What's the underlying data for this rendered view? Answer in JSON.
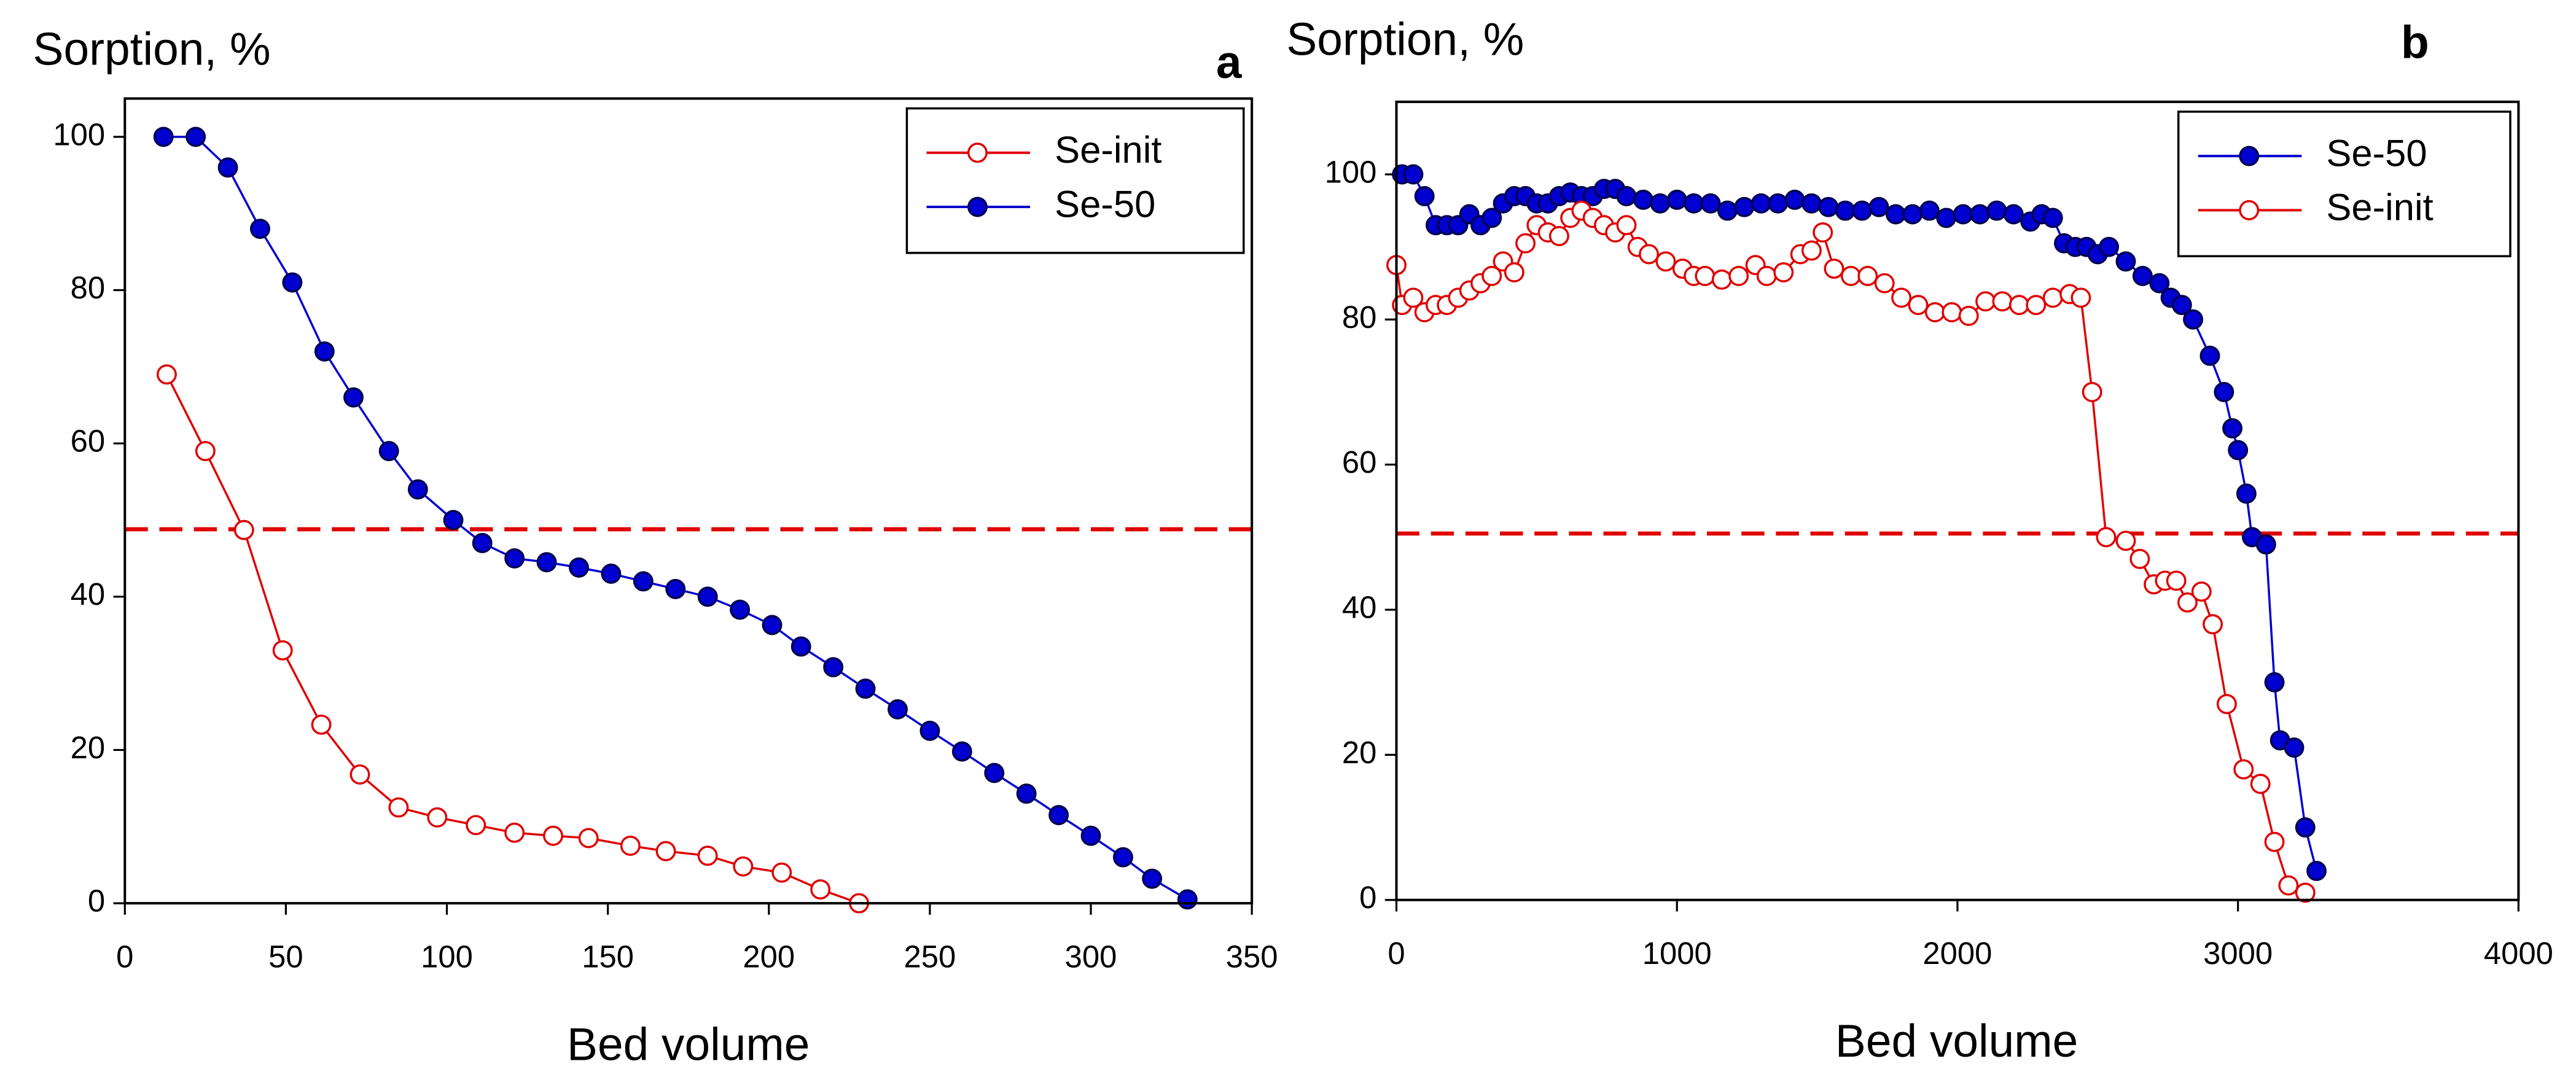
{
  "chart_data": [
    {
      "type": "line",
      "panel_label": "a",
      "y_label": "Sorption, %",
      "x_label": "Bed volume",
      "xlim": [
        0,
        350
      ],
      "ylim": [
        0,
        105
      ],
      "xticks": [
        0,
        50,
        100,
        150,
        200,
        250,
        300,
        350
      ],
      "yticks": [
        0,
        20,
        40,
        60,
        80,
        100
      ],
      "legend": "upper right",
      "hline": 48.8,
      "hline_color": "#e00000",
      "series": [
        {
          "name": "Se-init",
          "color": "#e00000",
          "marker": "open",
          "x": [
            13,
            25,
            37,
            49,
            61,
            73,
            85,
            97,
            109,
            121,
            133,
            144,
            157,
            168,
            181,
            192,
            204,
            216,
            228
          ],
          "values": [
            69,
            59,
            48.7,
            33,
            23.3,
            16.8,
            12.5,
            11.2,
            10.2,
            9.2,
            8.8,
            8.5,
            7.5,
            6.8,
            6.2,
            4.8,
            4,
            1.8,
            0
          ]
        },
        {
          "name": "Se-50",
          "color": "#0000d0",
          "marker": "filled",
          "x": [
            12,
            22,
            32,
            42,
            52,
            62,
            71,
            82,
            91,
            102,
            111,
            121,
            131,
            141,
            151,
            161,
            171,
            181,
            191,
            201,
            210,
            220,
            230,
            240,
            250,
            260,
            270,
            280,
            290,
            300,
            310,
            319,
            330
          ],
          "values": [
            100,
            100,
            96,
            88,
            81,
            72,
            66,
            59,
            54,
            50,
            47,
            45,
            44.5,
            43.8,
            43,
            42,
            41,
            40,
            38.3,
            36.3,
            33.5,
            30.8,
            28,
            25.3,
            22.5,
            19.8,
            17,
            14.3,
            11.5,
            8.8,
            6,
            3.2,
            0.5
          ]
        }
      ]
    },
    {
      "type": "line",
      "panel_label": "b",
      "y_label": "Sorption, %",
      "x_label": "Bed volume",
      "xlim": [
        0,
        4000
      ],
      "ylim": [
        0,
        110
      ],
      "xticks": [
        0,
        1000,
        2000,
        3000,
        4000
      ],
      "yticks": [
        0,
        20,
        40,
        60,
        80,
        100
      ],
      "legend": "upper right",
      "hline": 50.5,
      "hline_color": "#e00000",
      "series": [
        {
          "name": "Se-50",
          "color": "#0000d0",
          "marker": "filled",
          "x": [
            20,
            60,
            100,
            140,
            180,
            220,
            260,
            300,
            340,
            380,
            420,
            460,
            500,
            540,
            580,
            620,
            660,
            700,
            740,
            780,
            820,
            880,
            940,
            1000,
            1060,
            1120,
            1180,
            1240,
            1300,
            1360,
            1420,
            1480,
            1540,
            1600,
            1660,
            1720,
            1780,
            1840,
            1900,
            1960,
            2020,
            2080,
            2140,
            2200,
            2260,
            2300,
            2340,
            2380,
            2420,
            2460,
            2500,
            2540,
            2600,
            2660,
            2720,
            2760,
            2800,
            2840,
            2900,
            2950,
            2980,
            3000,
            3030,
            3050,
            3100,
            3130,
            3150,
            3200,
            3240,
            3280
          ],
          "values": [
            100,
            100,
            97,
            93,
            93,
            93,
            94.5,
            93,
            94,
            96,
            97,
            97,
            96,
            96,
            97,
            97.5,
            97,
            97,
            98,
            98,
            97,
            96.5,
            96,
            96.5,
            96,
            96,
            95,
            95.5,
            96,
            96,
            96.5,
            96,
            95.5,
            95,
            95,
            95.5,
            94.5,
            94.5,
            95,
            94,
            94.5,
            94.5,
            95,
            94.5,
            93.5,
            94.5,
            94,
            90.5,
            90,
            90,
            89,
            90,
            88,
            86,
            85,
            83,
            82,
            80,
            75,
            70,
            65,
            62,
            56,
            50,
            49,
            30,
            22,
            21,
            10,
            4
          ]
        },
        {
          "name": "Se-init",
          "color": "#e00000",
          "marker": "open",
          "x": [
            0,
            20,
            60,
            100,
            140,
            180,
            220,
            260,
            300,
            340,
            380,
            420,
            460,
            500,
            540,
            580,
            620,
            660,
            700,
            740,
            780,
            820,
            860,
            900,
            960,
            1020,
            1060,
            1100,
            1160,
            1220,
            1280,
            1320,
            1380,
            1440,
            1480,
            1520,
            1560,
            1620,
            1680,
            1740,
            1800,
            1860,
            1920,
            1980,
            2040,
            2100,
            2160,
            2220,
            2280,
            2340,
            2400,
            2440,
            2480,
            2530,
            2600,
            2650,
            2700,
            2740,
            2780,
            2820,
            2870,
            2910,
            2960,
            3020,
            3080,
            3130,
            3180,
            3240
          ],
          "values": [
            87.5,
            82,
            83,
            81,
            82,
            82,
            83,
            84,
            85,
            86,
            88,
            86.5,
            90.5,
            93,
            92,
            91.5,
            94,
            95,
            94,
            93,
            92,
            93,
            90,
            89,
            88,
            87,
            86,
            86,
            85.5,
            86,
            87.5,
            86,
            86.5,
            89,
            89.5,
            92,
            87,
            86,
            86,
            85,
            83,
            82,
            81,
            81,
            80.5,
            82.5,
            82.5,
            82,
            82,
            83,
            83.5,
            83,
            70,
            50,
            49.5,
            47,
            43.5,
            44,
            44,
            41,
            42.5,
            38,
            27,
            18,
            16,
            8,
            2,
            1
          ]
        }
      ]
    }
  ]
}
